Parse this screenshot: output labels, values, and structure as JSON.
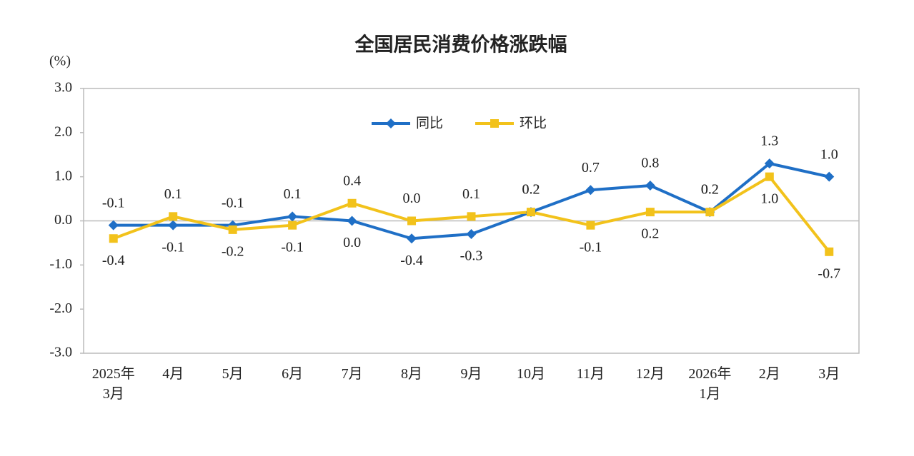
{
  "chart_data": {
    "type": "line",
    "title": "全国居民消费价格涨跌幅",
    "ylabel": "(%)",
    "categories": [
      "2025年\n3月",
      "4月",
      "5月",
      "6月",
      "7月",
      "8月",
      "9月",
      "10月",
      "11月",
      "12月",
      "2026年\n1月",
      "2月",
      "3月"
    ],
    "series": [
      {
        "name": "同比",
        "color": "#1f6fc6",
        "marker": "diamond",
        "values": [
          -0.1,
          -0.1,
          -0.1,
          0.1,
          0.0,
          -0.4,
          -0.3,
          0.2,
          0.7,
          0.8,
          0.2,
          1.3,
          1.0
        ],
        "value_labels": [
          "-0.1",
          "-0.1",
          "-0.1",
          "0.1",
          "0.0",
          "-0.4",
          "-0.3",
          "0.2",
          "0.7",
          "0.8",
          "0.2",
          "1.3",
          "1.0"
        ]
      },
      {
        "name": "环比",
        "color": "#f2c21b",
        "marker": "square",
        "values": [
          -0.4,
          0.1,
          -0.2,
          -0.1,
          0.4,
          0.0,
          0.1,
          0.2,
          -0.1,
          0.2,
          0.2,
          1.0,
          -0.7
        ],
        "value_labels": [
          "-0.4",
          "0.1",
          "-0.2",
          "-0.1",
          "0.4",
          "0.0",
          "0.1",
          "0.2",
          "-0.1",
          "0.2",
          "0.2",
          "1.0",
          "-0.7"
        ]
      }
    ],
    "ylim": [
      -3,
      3
    ],
    "yticks": [
      {
        "value": -3,
        "label": "-3.0"
      },
      {
        "value": -2,
        "label": "-2.0"
      },
      {
        "value": -1,
        "label": "-1.0"
      },
      {
        "value": 0,
        "label": "0.0"
      },
      {
        "value": 1,
        "label": "1.0"
      },
      {
        "value": 2,
        "label": "2.0"
      },
      {
        "value": 3,
        "label": "3.0"
      }
    ],
    "grid": false,
    "legend": "top"
  }
}
